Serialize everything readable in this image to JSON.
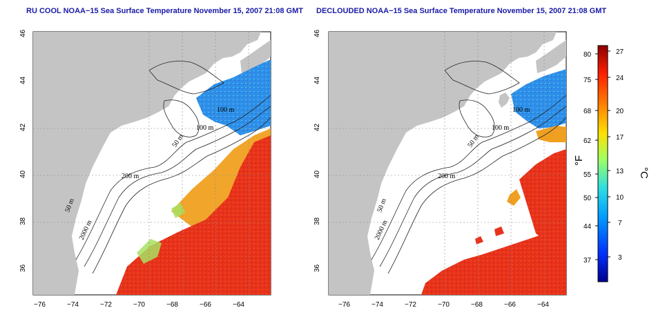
{
  "left_map": {
    "title": "RU COOL NOAA−15 Sea Surface Temperature November 15, 2007 21:08 GMT"
  },
  "right_map": {
    "title": "DECLOUDED NOAA−15 Sea Surface Temperature November 15, 2007 21:08 GMT"
  },
  "axes": {
    "lon_ticks": [
      "−76",
      "−74",
      "−72",
      "−70",
      "−68",
      "−66",
      "−64"
    ],
    "lat_ticks": [
      "46",
      "44",
      "42",
      "40",
      "38",
      "36"
    ]
  },
  "contour_labels": {
    "c100_a": "100 m",
    "c100_b": "100 m",
    "c50_a": "50 m",
    "c200": "200 m",
    "c50_b": "50 m",
    "c2000": "2000 m"
  },
  "colorbar": {
    "fahrenheit_label": "°F",
    "celsius_label": "°C",
    "fahrenheit_ticks": [
      "80",
      "75",
      "68",
      "62",
      "55",
      "50",
      "44",
      "37"
    ],
    "celsius_ticks": [
      "27",
      "24",
      "20",
      "17",
      "13",
      "10",
      "7",
      "3"
    ],
    "colors": {
      "c0": "#00008f",
      "c1": "#0030ff",
      "c2": "#00a0ff",
      "c3": "#30e0e0",
      "c4": "#a0ff60",
      "c5": "#ffe000",
      "c6": "#ff8000",
      "c7": "#ff2000",
      "c8": "#8f0000"
    }
  },
  "colors": {
    "land": "#c4c4c4",
    "ocean_clear": "#ffffff",
    "sst_cold": "#2f7fe0",
    "sst_cool": "#3cc8f0",
    "sst_warm": "#f0a020",
    "sst_hot": "#e8331c"
  }
}
